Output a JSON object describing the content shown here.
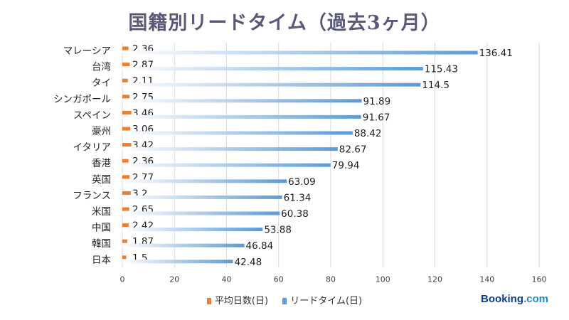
{
  "chart_data": {
    "type": "bar",
    "orientation": "horizontal",
    "title": "国籍別リードタイム（過去3ヶ月）",
    "categories": [
      "マレーシア",
      "台湾",
      "タイ",
      "シンガポール",
      "スペイン",
      "豪州",
      "イタリア",
      "香港",
      "英国",
      "フランス",
      "米国",
      "中国",
      "韓国",
      "日本"
    ],
    "series": [
      {
        "name": "平均日数(日)",
        "color": "#ed7d31",
        "values": [
          2.36,
          2.87,
          2.11,
          2.75,
          3.46,
          3.06,
          3.42,
          2.36,
          2.77,
          3.2,
          2.65,
          2.42,
          1.87,
          1.5
        ]
      },
      {
        "name": "リードタイム(日)",
        "color": "#5b9bd5",
        "values": [
          136.41,
          115.43,
          114.5,
          91.89,
          91.67,
          88.42,
          82.67,
          79.94,
          63.09,
          61.34,
          60.38,
          53.88,
          46.84,
          42.48
        ]
      }
    ],
    "xlim": [
      0,
      160
    ],
    "xticks": [
      "0",
      "20",
      "40",
      "60",
      "80",
      "100",
      "120",
      "140",
      "160"
    ],
    "grid": true,
    "legend_position": "bottom"
  },
  "brand": {
    "name": "Booking",
    "suffix": ".com"
  }
}
